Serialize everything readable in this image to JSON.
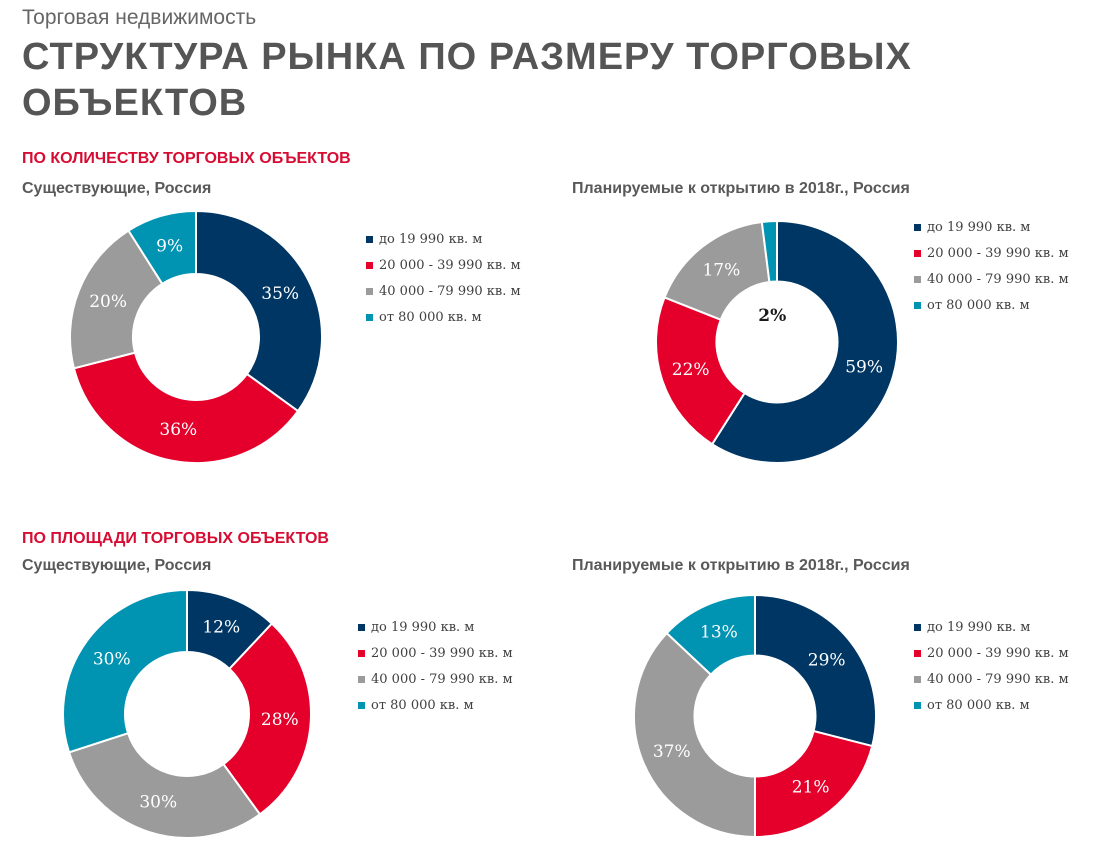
{
  "header": {
    "kicker": "Торговая недвижимость",
    "title": "СТРУКТУРА РЫНКА ПО РАЗМЕРУ ТОРГОВЫХ ОБЪЕКТОВ"
  },
  "sections": [
    {
      "label": "ПО КОЛИЧЕСТВУ ТОРГОВЫХ ОБЪЕКТОВ"
    },
    {
      "label": "ПО ПЛОЩАДИ ТОРГОВЫХ ОБЪЕКТОВ"
    }
  ],
  "colors": {
    "navy": "#003663",
    "red": "#e4002b",
    "gray": "#9b9b9b",
    "teal": "#0093b2",
    "label_light": "#ffffff",
    "label_dark": "#1a1a1a"
  },
  "chart_data": [
    {
      "type": "pie",
      "donut": true,
      "title": "Существующие, Россия",
      "categories": [
        "до 19 990 кв. м",
        "20 000 - 39 990 кв. м",
        "40 000 - 79 990 кв. м",
        "от 80 000 кв. м"
      ],
      "values": [
        35,
        36,
        20,
        9
      ],
      "labels": [
        "35%",
        "36%",
        "20%",
        "9%"
      ],
      "legend_position": "right"
    },
    {
      "type": "pie",
      "donut": true,
      "title": "Планируемые к открытию в 2018г., Россия",
      "categories": [
        "до 19 990 кв. м",
        "20 000 - 39 990 кв. м",
        "40 000 - 79 990 кв. м",
        "от 80 000 кв. м"
      ],
      "values": [
        59,
        22,
        17,
        2
      ],
      "labels": [
        "59%",
        "22%",
        "17%",
        "2%"
      ],
      "legend_position": "right"
    },
    {
      "type": "pie",
      "donut": true,
      "title": "Существующие, Россия",
      "categories": [
        "до 19 990 кв. м",
        "20 000 - 39 990 кв. м",
        "40 000 - 79 990 кв. м",
        "от 80 000 кв. м"
      ],
      "values": [
        12,
        28,
        30,
        30
      ],
      "labels": [
        "12%",
        "28%",
        "30%",
        "30%"
      ],
      "legend_position": "right"
    },
    {
      "type": "pie",
      "donut": true,
      "title": "Планируемые к открытию в 2018г., Россия",
      "categories": [
        "до 19 990 кв. м",
        "20 000 - 39 990 кв. м",
        "40 000 - 79 990 кв. м",
        "от 80 000 кв. м"
      ],
      "values": [
        29,
        21,
        37,
        13
      ],
      "labels": [
        "29%",
        "21%",
        "37%",
        "13%"
      ],
      "legend_position": "right"
    }
  ]
}
